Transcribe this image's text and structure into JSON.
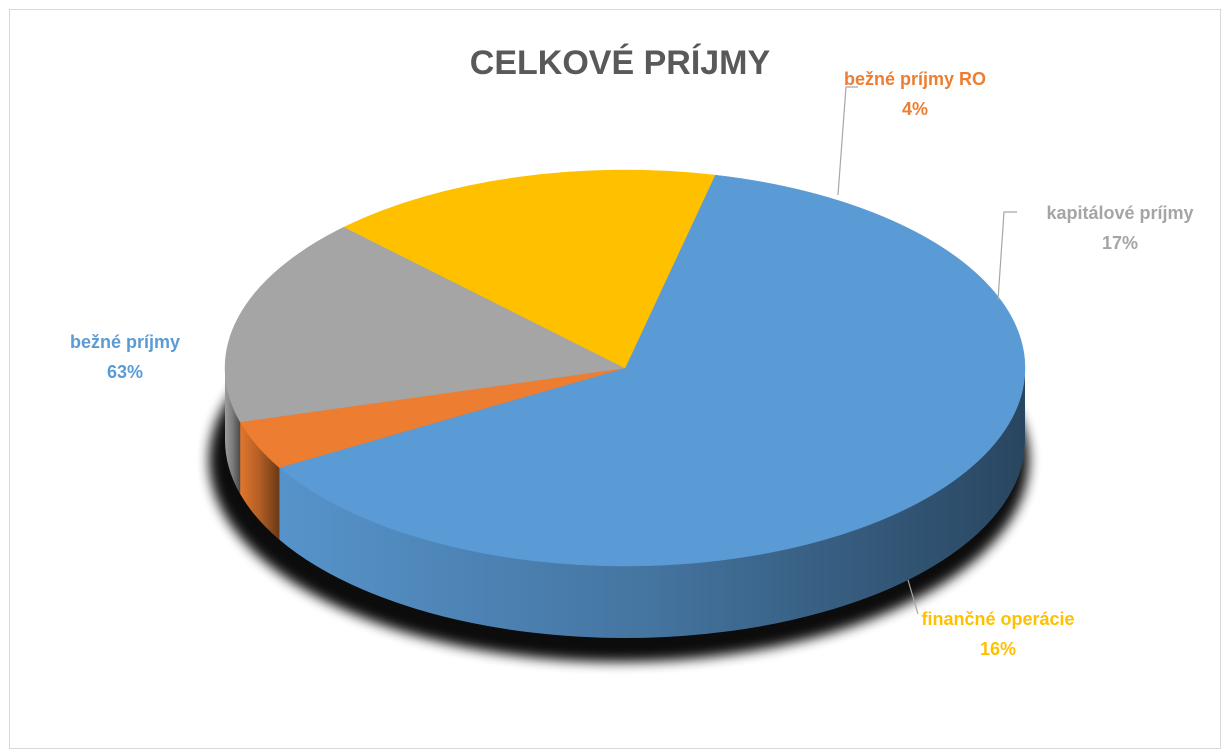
{
  "chart_data": {
    "type": "pie",
    "title": "CELKOVÉ PRÍJMY",
    "style": "3d",
    "slices": [
      {
        "name": "bežné príjmy",
        "value": 63,
        "label": "63%",
        "color": "#5b9bd5"
      },
      {
        "name": "bežné príjmy RO",
        "value": 4,
        "label": "4%",
        "color": "#ed7d31"
      },
      {
        "name": "kapitálové príjmy",
        "value": 17,
        "label": "17%",
        "color": "#a5a5a5"
      },
      {
        "name": "finančné operácie",
        "value": 16,
        "label": "16%",
        "color": "#ffc000"
      }
    ]
  }
}
